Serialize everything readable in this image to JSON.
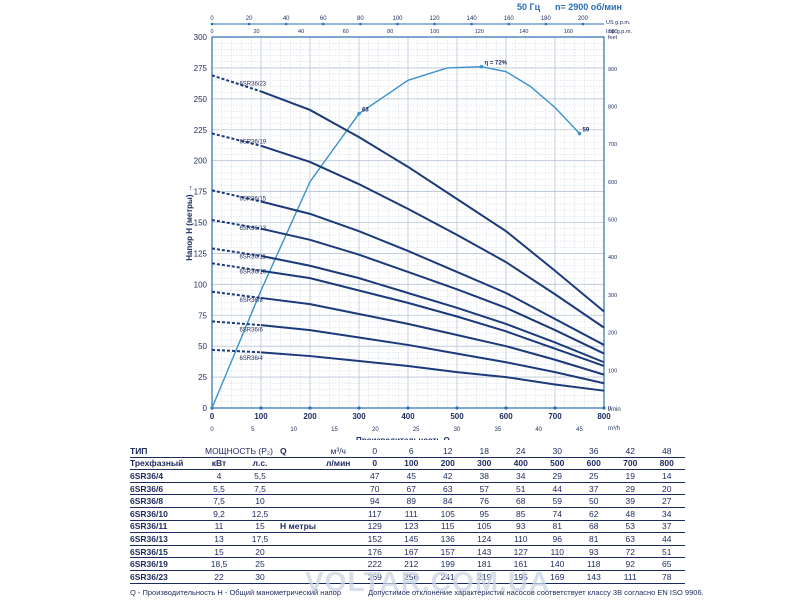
{
  "header": {
    "freq": "50 Гц",
    "rpm": "n= 2900 об/мин"
  },
  "chart_data": {
    "type": "line",
    "xlabel": "Производительность Q",
    "ylabel": "Напор H (метры)",
    "x_ticks": [
      0,
      100,
      200,
      300,
      400,
      500,
      600,
      700,
      800
    ],
    "x_unit": "l/min",
    "y_ticks": [
      0,
      25,
      50,
      75,
      100,
      125,
      150,
      175,
      200,
      225,
      250,
      275,
      300
    ],
    "xlim": [
      0,
      800
    ],
    "ylim": [
      0,
      300
    ],
    "top_axis1": {
      "unit": "US g.p.m.",
      "ticks": [
        "0",
        "20",
        "40",
        "60",
        "80",
        "100",
        "120",
        "140",
        "160",
        "180",
        "200"
      ]
    },
    "top_axis2": {
      "unit": "Imp g.p.m.",
      "ticks": [
        "0",
        "20",
        "40",
        "60",
        "80",
        "100",
        "120",
        "140",
        "160",
        "180"
      ]
    },
    "bottom_axis2": {
      "unit": "m³/h",
      "ticks": [
        "0",
        "5",
        "10",
        "15",
        "20",
        "25",
        "30",
        "35",
        "40",
        "45"
      ]
    },
    "right_axis": {
      "unit": "feet",
      "ticks": [
        "0",
        "100",
        "200",
        "300",
        "400",
        "500",
        "600",
        "700",
        "800",
        "900"
      ]
    },
    "series": [
      {
        "name": "6SR36/23",
        "x": [
          0,
          100,
          200,
          300,
          400,
          500,
          600,
          700,
          800
        ],
        "y": [
          269,
          256,
          241,
          219,
          195,
          169,
          143,
          111,
          78
        ]
      },
      {
        "name": "6SR36/19",
        "x": [
          0,
          100,
          200,
          300,
          400,
          500,
          600,
          700,
          800
        ],
        "y": [
          222,
          212,
          199,
          181,
          161,
          140,
          118,
          92,
          65
        ]
      },
      {
        "name": "6SR36/15",
        "x": [
          0,
          100,
          200,
          300,
          400,
          500,
          600,
          700,
          800
        ],
        "y": [
          176,
          167,
          157,
          143,
          127,
          110,
          93,
          72,
          51
        ]
      },
      {
        "name": "6SR36/13",
        "x": [
          0,
          100,
          200,
          300,
          400,
          500,
          600,
          700,
          800
        ],
        "y": [
          152,
          145,
          136,
          124,
          110,
          96,
          81,
          63,
          44
        ]
      },
      {
        "name": "6SR36/11",
        "x": [
          0,
          100,
          200,
          300,
          400,
          500,
          600,
          700,
          800
        ],
        "y": [
          129,
          123,
          115,
          105,
          93,
          81,
          68,
          53,
          37
        ]
      },
      {
        "name": "6SR36/10",
        "x": [
          0,
          100,
          200,
          300,
          400,
          500,
          600,
          700,
          800
        ],
        "y": [
          117,
          111,
          105,
          95,
          85,
          74,
          62,
          48,
          34
        ]
      },
      {
        "name": "6SR36/8",
        "x": [
          0,
          100,
          200,
          300,
          400,
          500,
          600,
          700,
          800
        ],
        "y": [
          94,
          89,
          84,
          76,
          68,
          59,
          50,
          39,
          27
        ]
      },
      {
        "name": "6SR36/6",
        "x": [
          0,
          100,
          200,
          300,
          400,
          500,
          600,
          700,
          800
        ],
        "y": [
          70,
          67,
          63,
          57,
          51,
          44,
          37,
          29,
          20
        ]
      },
      {
        "name": "6SR36/4",
        "x": [
          0,
          100,
          200,
          300,
          400,
          500,
          600,
          700,
          800
        ],
        "y": [
          47,
          45,
          42,
          38,
          34,
          29,
          25,
          19,
          14
        ]
      }
    ],
    "efficiency": {
      "points": [
        [
          0,
          0
        ],
        [
          100,
          95
        ],
        [
          200,
          183
        ],
        [
          300,
          238
        ],
        [
          400,
          265
        ],
        [
          480,
          275
        ],
        [
          550,
          276
        ],
        [
          600,
          272
        ],
        [
          650,
          260
        ],
        [
          700,
          243
        ],
        [
          750,
          222
        ]
      ],
      "labels": [
        {
          "x": 300,
          "y": 238,
          "text": "63"
        },
        {
          "x": 550,
          "y": 276,
          "text": "η = 72%"
        },
        {
          "x": 750,
          "y": 222,
          "text": "59"
        }
      ]
    }
  },
  "table": {
    "col_type": "ТИП",
    "col_power": "МОЩНОСТЬ (P₂)",
    "phase_label": "Трехфазный",
    "kw_label": "кВт",
    "hp_label": "л.с.",
    "q_label": "Q",
    "q_unit_m3": "м³/ч",
    "q_unit_l": "л/мин",
    "h_label": "H метры",
    "q_m3": [
      "0",
      "6",
      "12",
      "18",
      "24",
      "30",
      "36",
      "42",
      "48"
    ],
    "q_l": [
      "0",
      "100",
      "200",
      "300",
      "400",
      "500",
      "600",
      "700",
      "800"
    ],
    "rows": [
      {
        "type": "6SR36/4",
        "kw": "4",
        "hp": "5,5",
        "h": [
          "47",
          "45",
          "42",
          "38",
          "34",
          "29",
          "25",
          "19",
          "14"
        ]
      },
      {
        "type": "6SR36/6",
        "kw": "5,5",
        "hp": "7,5",
        "h": [
          "70",
          "67",
          "63",
          "57",
          "51",
          "44",
          "37",
          "29",
          "20"
        ]
      },
      {
        "type": "6SR36/8",
        "kw": "7,5",
        "hp": "10",
        "h": [
          "94",
          "89",
          "84",
          "76",
          "68",
          "59",
          "50",
          "39",
          "27"
        ]
      },
      {
        "type": "6SR36/10",
        "kw": "9,2",
        "hp": "12,5",
        "h": [
          "117",
          "111",
          "105",
          "95",
          "85",
          "74",
          "62",
          "48",
          "34"
        ]
      },
      {
        "type": "6SR36/11",
        "kw": "11",
        "hp": "15",
        "h": [
          "129",
          "123",
          "115",
          "105",
          "93",
          "81",
          "68",
          "53",
          "37"
        ]
      },
      {
        "type": "6SR36/13",
        "kw": "13",
        "hp": "17,5",
        "h": [
          "152",
          "145",
          "136",
          "124",
          "110",
          "96",
          "81",
          "63",
          "44"
        ]
      },
      {
        "type": "6SR36/15",
        "kw": "15",
        "hp": "20",
        "h": [
          "176",
          "167",
          "157",
          "143",
          "127",
          "110",
          "93",
          "72",
          "51"
        ]
      },
      {
        "type": "6SR36/19",
        "kw": "18,5",
        "hp": "25",
        "h": [
          "222",
          "212",
          "199",
          "181",
          "161",
          "140",
          "118",
          "92",
          "65"
        ]
      },
      {
        "type": "6SR36/23",
        "kw": "22",
        "hp": "30",
        "h": [
          "269",
          "256",
          "241",
          "219",
          "195",
          "169",
          "143",
          "111",
          "78"
        ]
      }
    ]
  },
  "footer": {
    "left": "Q - Производительность   H - Общий манометрический напор",
    "right": "Допустимое отклонение характеристик насосов соответствует классу 3B согласно EN ISO 9906."
  },
  "watermark": "VOLTAR.COM.UA",
  "colors": {
    "curve": "#1b3a7a",
    "efficiency": "#3a92cc",
    "grid": "#b8c6d6",
    "axis": "#2a6db5"
  }
}
